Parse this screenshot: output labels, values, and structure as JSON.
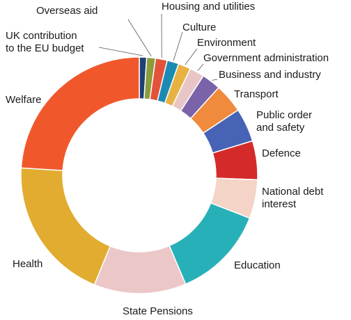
{
  "chart_data": {
    "type": "pie",
    "donut": true,
    "legend": "none",
    "title": "",
    "slices": [
      {
        "label": "UK contribution to the EU budget",
        "label_lines": [
          "UK contribution",
          "to the EU budget"
        ],
        "value": 1.0,
        "color": "#1f3f76"
      },
      {
        "label": "Overseas aid",
        "label_lines": [
          "Overseas aid"
        ],
        "value": 1.2,
        "color": "#8b9c3a"
      },
      {
        "label": "Housing and utilities",
        "label_lines": [
          "Housing and utilities"
        ],
        "value": 1.6,
        "color": "#e2533a"
      },
      {
        "label": "Culture",
        "label_lines": [
          "Culture"
        ],
        "value": 1.6,
        "color": "#1b8bb4"
      },
      {
        "label": "Environment",
        "label_lines": [
          "Environment"
        ],
        "value": 1.7,
        "color": "#e8b243"
      },
      {
        "label": "Government administration",
        "label_lines": [
          "Government administration"
        ],
        "value": 2.0,
        "color": "#e8c6c7"
      },
      {
        "label": "Business and industry",
        "label_lines": [
          "Business and industry"
        ],
        "value": 2.6,
        "color": "#7a63a8"
      },
      {
        "label": "Transport",
        "label_lines": [
          "Transport"
        ],
        "value": 4.0,
        "color": "#f08a3c"
      },
      {
        "label": "Public order and safety",
        "label_lines": [
          "Public order",
          "and safety"
        ],
        "value": 4.6,
        "color": "#4763b5"
      },
      {
        "label": "Defence",
        "label_lines": [
          "Defence"
        ],
        "value": 5.3,
        "color": "#d42a2a"
      },
      {
        "label": "National debt interest",
        "label_lines": [
          "National debt",
          "interest"
        ],
        "value": 5.3,
        "color": "#f4d4c6"
      },
      {
        "label": "Education",
        "label_lines": [
          "Education"
        ],
        "value": 12.7,
        "color": "#28b0b8"
      },
      {
        "label": "State Pensions",
        "label_lines": [
          "State Pensions"
        ],
        "value": 12.6,
        "color": "#ecc7c8"
      },
      {
        "label": "Health",
        "label_lines": [
          "Health"
        ],
        "value": 19.8,
        "color": "#e1ac2f"
      },
      {
        "label": "Welfare",
        "label_lines": [
          "Welfare"
        ],
        "value": 24.0,
        "color": "#f0582c"
      }
    ]
  }
}
